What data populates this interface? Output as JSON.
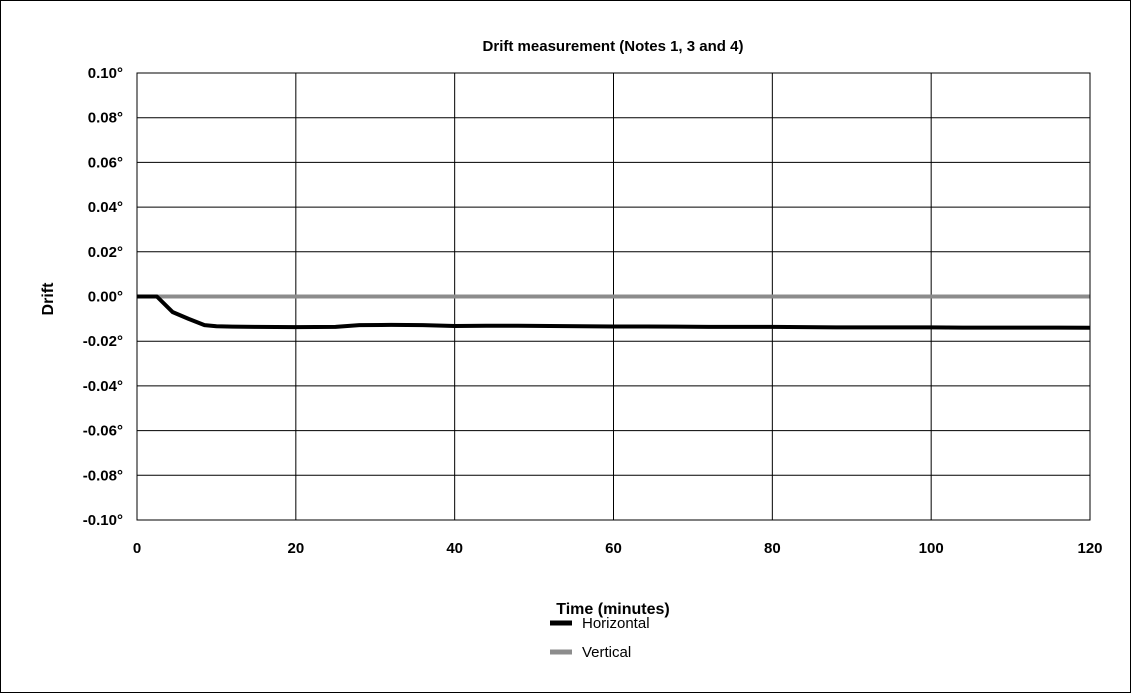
{
  "chart_data": {
    "type": "line",
    "title": "Drift measurement (Notes 1, 3 and 4)",
    "xlabel": "Time (minutes)",
    "ylabel": "Drift",
    "xlim": [
      0,
      120
    ],
    "ylim": [
      -0.1,
      0.1
    ],
    "x_ticks": [
      0,
      20,
      40,
      60,
      80,
      100,
      120
    ],
    "x_tick_labels": [
      "0",
      "20",
      "40",
      "60",
      "80",
      "100",
      "120"
    ],
    "y_ticks": [
      0.1,
      0.08,
      0.06,
      0.04,
      0.02,
      0.0,
      -0.02,
      -0.04,
      -0.06,
      -0.08,
      -0.1
    ],
    "y_tick_labels": [
      "0.10°",
      "0.08°",
      "0.06°",
      "0.04°",
      "0.02°",
      "0.00°",
      "-0.02°",
      "-0.04°",
      "-0.06°",
      "-0.08°",
      "-0.10°"
    ],
    "grid": true,
    "legend_position": "bottom-center",
    "series": [
      {
        "name": "Horizontal",
        "color": "#000000",
        "x": [
          0,
          2.5,
          4.5,
          6.5,
          8.5,
          10,
          12,
          15,
          20,
          25,
          28,
          32,
          36,
          40,
          44,
          48,
          52,
          56,
          60,
          64,
          68,
          72,
          76,
          80,
          84,
          88,
          92,
          96,
          100,
          104,
          108,
          112,
          116,
          120
        ],
        "y": [
          0.0,
          0.0,
          -0.007,
          -0.01,
          -0.0128,
          -0.0133,
          -0.0135,
          -0.0136,
          -0.0137,
          -0.0136,
          -0.0128,
          -0.0127,
          -0.0128,
          -0.0132,
          -0.0131,
          -0.0131,
          -0.0132,
          -0.0133,
          -0.0134,
          -0.0134,
          -0.0135,
          -0.0136,
          -0.0136,
          -0.0136,
          -0.0137,
          -0.0138,
          -0.0138,
          -0.0138,
          -0.0138,
          -0.0139,
          -0.0139,
          -0.0139,
          -0.0139,
          -0.014
        ]
      },
      {
        "name": "Vertical",
        "color": "#8c8c8c",
        "x": [
          0,
          120
        ],
        "y": [
          0.0,
          0.0
        ]
      }
    ]
  }
}
